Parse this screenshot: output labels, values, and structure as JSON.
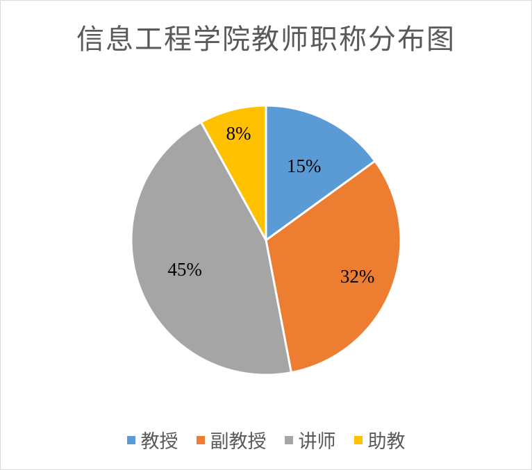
{
  "chart_data": {
    "type": "pie",
    "title": "信息工程学院教师职称分布图",
    "categories": [
      "教授",
      "副教授",
      "讲师",
      "助教"
    ],
    "values": [
      15,
      32,
      45,
      8
    ],
    "labels": [
      "15%",
      "32%",
      "45%",
      "8%"
    ],
    "colors": [
      "#5b9bd5",
      "#ed7d31",
      "#a5a5a5",
      "#ffc000"
    ],
    "legend_position": "bottom"
  }
}
